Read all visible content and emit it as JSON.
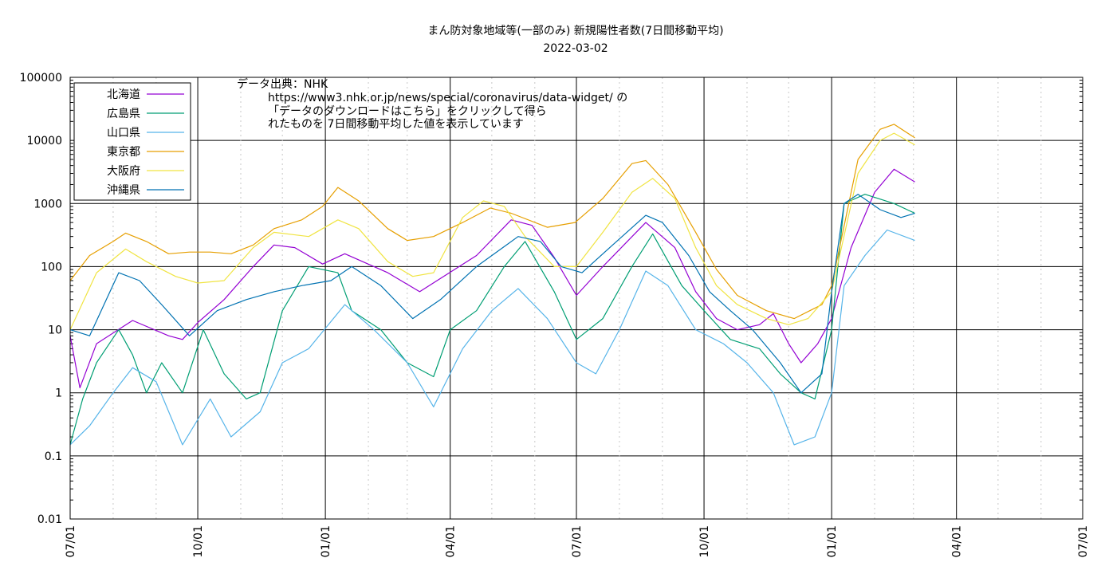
{
  "chart_data": {
    "type": "line",
    "title": "まん防対象地域等(一部のみ) 新規陽性者数(7日間移動平均)",
    "subtitle": "2022-03-02",
    "y_scale": "log",
    "ylim": [
      0.01,
      100000
    ],
    "y_ticks": [
      "0.01",
      "0.1",
      "1",
      "10",
      "100",
      "1000",
      "10000",
      "100000"
    ],
    "x_range": [
      "2020-07-01",
      "2022-07-01"
    ],
    "x_ticks": [
      "07/01",
      "10/01",
      "01/01",
      "04/01",
      "07/01",
      "10/01",
      "01/01",
      "04/01",
      "07/01"
    ],
    "grid": true,
    "legend_position": "top-left",
    "source_note": [
      "データ出典：NHK",
      "https://www3.nhk.or.jp/news/special/coronavirus/data-widget/ の",
      "「データのダウンロードはこちら」をクリックして得ら",
      "れたものを 7日間移動平均した値を表示しています"
    ],
    "series": [
      {
        "name": "北海道",
        "color": "#9400d3",
        "points": [
          [
            "2020-07-01",
            8
          ],
          [
            "2020-07-08",
            1.2
          ],
          [
            "2020-07-20",
            6
          ],
          [
            "2020-08-15",
            14
          ],
          [
            "2020-09-10",
            8
          ],
          [
            "2020-09-20",
            7
          ],
          [
            "2020-10-01",
            13
          ],
          [
            "2020-10-20",
            30
          ],
          [
            "2020-11-10",
            100
          ],
          [
            "2020-11-25",
            220
          ],
          [
            "2020-12-10",
            200
          ],
          [
            "2020-12-30",
            110
          ],
          [
            "2021-01-15",
            160
          ],
          [
            "2021-02-15",
            80
          ],
          [
            "2021-03-10",
            40
          ],
          [
            "2021-03-25",
            65
          ],
          [
            "2021-04-20",
            150
          ],
          [
            "2021-05-15",
            550
          ],
          [
            "2021-05-30",
            450
          ],
          [
            "2021-06-15",
            140
          ],
          [
            "2021-07-01",
            35
          ],
          [
            "2021-07-20",
            100
          ],
          [
            "2021-08-20",
            500
          ],
          [
            "2021-09-10",
            200
          ],
          [
            "2021-09-25",
            40
          ],
          [
            "2021-10-10",
            15
          ],
          [
            "2021-10-25",
            10
          ],
          [
            "2021-11-10",
            12
          ],
          [
            "2021-11-20",
            18
          ],
          [
            "2021-12-01",
            6
          ],
          [
            "2021-12-10",
            3
          ],
          [
            "2021-12-22",
            6
          ],
          [
            "2022-01-01",
            15
          ],
          [
            "2022-01-15",
            200
          ],
          [
            "2022-02-01",
            1500
          ],
          [
            "2022-02-15",
            3500
          ],
          [
            "2022-03-02",
            2200
          ]
        ]
      },
      {
        "name": "広島県",
        "color": "#009e73",
        "points": [
          [
            "2020-07-01",
            0.15
          ],
          [
            "2020-07-10",
            0.8
          ],
          [
            "2020-07-20",
            3
          ],
          [
            "2020-08-05",
            10
          ],
          [
            "2020-08-15",
            4
          ],
          [
            "2020-08-25",
            1
          ],
          [
            "2020-09-05",
            3
          ],
          [
            "2020-09-20",
            1
          ],
          [
            "2020-10-05",
            10
          ],
          [
            "2020-10-20",
            2
          ],
          [
            "2020-11-05",
            0.8
          ],
          [
            "2020-11-15",
            1
          ],
          [
            "2020-12-01",
            20
          ],
          [
            "2020-12-20",
            100
          ],
          [
            "2021-01-10",
            80
          ],
          [
            "2021-01-20",
            20
          ],
          [
            "2021-02-10",
            10
          ],
          [
            "2021-03-01",
            3
          ],
          [
            "2021-03-20",
            1.8
          ],
          [
            "2021-04-01",
            10
          ],
          [
            "2021-04-20",
            20
          ],
          [
            "2021-05-10",
            100
          ],
          [
            "2021-05-25",
            250
          ],
          [
            "2021-06-15",
            40
          ],
          [
            "2021-07-01",
            7
          ],
          [
            "2021-07-20",
            15
          ],
          [
            "2021-08-10",
            100
          ],
          [
            "2021-08-25",
            330
          ],
          [
            "2021-09-15",
            50
          ],
          [
            "2021-10-01",
            20
          ],
          [
            "2021-10-20",
            7
          ],
          [
            "2021-11-10",
            5
          ],
          [
            "2021-11-25",
            2
          ],
          [
            "2021-12-10",
            1
          ],
          [
            "2021-12-20",
            0.8
          ],
          [
            "2022-01-01",
            10
          ],
          [
            "2022-01-10",
            1000
          ],
          [
            "2022-01-25",
            1400
          ],
          [
            "2022-02-15",
            1000
          ],
          [
            "2022-03-02",
            700
          ]
        ]
      },
      {
        "name": "山口県",
        "color": "#56b4e9",
        "points": [
          [
            "2020-07-01",
            0.15
          ],
          [
            "2020-07-15",
            0.3
          ],
          [
            "2020-08-01",
            1
          ],
          [
            "2020-08-15",
            2.5
          ],
          [
            "2020-09-01",
            1.5
          ],
          [
            "2020-09-20",
            0.15
          ],
          [
            "2020-10-10",
            0.8
          ],
          [
            "2020-10-25",
            0.2
          ],
          [
            "2020-11-15",
            0.5
          ],
          [
            "2020-12-01",
            3
          ],
          [
            "2020-12-20",
            5
          ],
          [
            "2021-01-15",
            25
          ],
          [
            "2021-02-05",
            10
          ],
          [
            "2021-03-01",
            3
          ],
          [
            "2021-03-20",
            0.6
          ],
          [
            "2021-04-10",
            5
          ],
          [
            "2021-05-01",
            20
          ],
          [
            "2021-05-20",
            45
          ],
          [
            "2021-06-10",
            15
          ],
          [
            "2021-07-01",
            3
          ],
          [
            "2021-07-15",
            2
          ],
          [
            "2021-08-01",
            10
          ],
          [
            "2021-08-20",
            85
          ],
          [
            "2021-09-05",
            50
          ],
          [
            "2021-09-25",
            10
          ],
          [
            "2021-10-15",
            6
          ],
          [
            "2021-11-01",
            3
          ],
          [
            "2021-11-20",
            1
          ],
          [
            "2021-12-05",
            0.15
          ],
          [
            "2021-12-20",
            0.2
          ],
          [
            "2022-01-01",
            1
          ],
          [
            "2022-01-10",
            50
          ],
          [
            "2022-01-25",
            150
          ],
          [
            "2022-02-10",
            380
          ],
          [
            "2022-03-02",
            260
          ]
        ]
      },
      {
        "name": "東京都",
        "color": "#e69f00",
        "points": [
          [
            "2020-07-01",
            60
          ],
          [
            "2020-07-15",
            150
          ],
          [
            "2020-08-01",
            250
          ],
          [
            "2020-08-10",
            340
          ],
          [
            "2020-08-25",
            250
          ],
          [
            "2020-09-10",
            160
          ],
          [
            "2020-09-25",
            170
          ],
          [
            "2020-10-10",
            170
          ],
          [
            "2020-10-25",
            160
          ],
          [
            "2020-11-10",
            220
          ],
          [
            "2020-11-25",
            400
          ],
          [
            "2020-12-15",
            550
          ],
          [
            "2020-12-30",
            900
          ],
          [
            "2021-01-10",
            1800
          ],
          [
            "2021-01-25",
            1100
          ],
          [
            "2021-02-15",
            400
          ],
          [
            "2021-03-01",
            260
          ],
          [
            "2021-03-20",
            300
          ],
          [
            "2021-04-10",
            500
          ],
          [
            "2021-04-30",
            850
          ],
          [
            "2021-05-15",
            700
          ],
          [
            "2021-06-10",
            420
          ],
          [
            "2021-06-30",
            500
          ],
          [
            "2021-07-20",
            1200
          ],
          [
            "2021-08-10",
            4300
          ],
          [
            "2021-08-20",
            4800
          ],
          [
            "2021-09-05",
            2000
          ],
          [
            "2021-09-25",
            350
          ],
          [
            "2021-10-10",
            90
          ],
          [
            "2021-10-25",
            35
          ],
          [
            "2021-11-15",
            20
          ],
          [
            "2021-12-05",
            15
          ],
          [
            "2021-12-25",
            25
          ],
          [
            "2022-01-01",
            50
          ],
          [
            "2022-01-20",
            5000
          ],
          [
            "2022-02-05",
            15000
          ],
          [
            "2022-02-15",
            18000
          ],
          [
            "2022-03-02",
            11000
          ]
        ]
      },
      {
        "name": "大阪府",
        "color": "#f0e442",
        "points": [
          [
            "2020-07-01",
            10
          ],
          [
            "2020-07-20",
            80
          ],
          [
            "2020-08-10",
            190
          ],
          [
            "2020-08-25",
            120
          ],
          [
            "2020-09-15",
            70
          ],
          [
            "2020-10-01",
            55
          ],
          [
            "2020-10-20",
            60
          ],
          [
            "2020-11-10",
            200
          ],
          [
            "2020-11-25",
            350
          ],
          [
            "2020-12-20",
            300
          ],
          [
            "2021-01-10",
            550
          ],
          [
            "2021-01-25",
            400
          ],
          [
            "2021-02-15",
            120
          ],
          [
            "2021-03-05",
            70
          ],
          [
            "2021-03-20",
            80
          ],
          [
            "2021-04-10",
            600
          ],
          [
            "2021-04-25",
            1100
          ],
          [
            "2021-05-10",
            900
          ],
          [
            "2021-05-25",
            300
          ],
          [
            "2021-06-15",
            100
          ],
          [
            "2021-07-01",
            100
          ],
          [
            "2021-07-20",
            350
          ],
          [
            "2021-08-10",
            1500
          ],
          [
            "2021-08-25",
            2500
          ],
          [
            "2021-09-10",
            1200
          ],
          [
            "2021-09-25",
            200
          ],
          [
            "2021-10-10",
            50
          ],
          [
            "2021-10-25",
            25
          ],
          [
            "2021-11-15",
            15
          ],
          [
            "2021-12-01",
            12
          ],
          [
            "2021-12-15",
            15
          ],
          [
            "2022-01-01",
            40
          ],
          [
            "2022-01-20",
            3000
          ],
          [
            "2022-02-05",
            10000
          ],
          [
            "2022-02-15",
            13000
          ],
          [
            "2022-03-02",
            8500
          ]
        ]
      },
      {
        "name": "沖縄県",
        "color": "#0072b2",
        "points": [
          [
            "2020-07-01",
            10
          ],
          [
            "2020-07-15",
            8
          ],
          [
            "2020-08-05",
            80
          ],
          [
            "2020-08-20",
            60
          ],
          [
            "2020-09-05",
            25
          ],
          [
            "2020-09-25",
            8
          ],
          [
            "2020-10-15",
            20
          ],
          [
            "2020-11-05",
            30
          ],
          [
            "2020-11-25",
            40
          ],
          [
            "2020-12-15",
            50
          ],
          [
            "2021-01-05",
            60
          ],
          [
            "2021-01-20",
            100
          ],
          [
            "2021-02-10",
            50
          ],
          [
            "2021-03-05",
            15
          ],
          [
            "2021-03-25",
            30
          ],
          [
            "2021-04-20",
            100
          ],
          [
            "2021-05-20",
            300
          ],
          [
            "2021-06-05",
            250
          ],
          [
            "2021-06-20",
            100
          ],
          [
            "2021-07-05",
            80
          ],
          [
            "2021-07-25",
            200
          ],
          [
            "2021-08-20",
            650
          ],
          [
            "2021-09-01",
            500
          ],
          [
            "2021-09-20",
            150
          ],
          [
            "2021-10-05",
            40
          ],
          [
            "2021-10-20",
            20
          ],
          [
            "2021-11-05",
            10
          ],
          [
            "2021-11-25",
            3
          ],
          [
            "2021-12-10",
            1
          ],
          [
            "2021-12-25",
            2
          ],
          [
            "2022-01-01",
            40
          ],
          [
            "2022-01-10",
            1000
          ],
          [
            "2022-01-20",
            1400
          ],
          [
            "2022-02-05",
            800
          ],
          [
            "2022-02-20",
            600
          ],
          [
            "2022-03-02",
            700
          ]
        ]
      }
    ]
  }
}
